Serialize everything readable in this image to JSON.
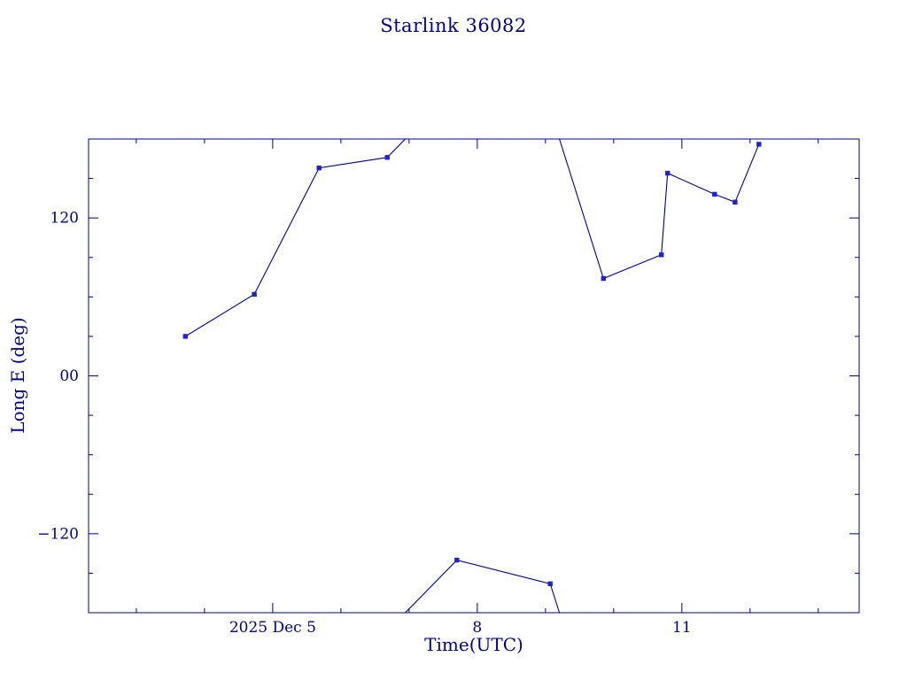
{
  "page": {
    "window_title": "Starlink 36082"
  },
  "chart_data": {
    "type": "line",
    "title": "Starlink 36082",
    "xlabel": "Time(UTC)",
    "ylabel": "Long E (deg)",
    "x_unit": "day of December 2025",
    "xlim": [
      2.3,
      13.6
    ],
    "ylim": [
      -180,
      180
    ],
    "y_wrap": 180,
    "grid": false,
    "legend": false,
    "x_major_ticks": [
      {
        "day": 5,
        "label": "2025 Dec  5"
      },
      {
        "day": 8,
        "label": "8"
      },
      {
        "day": 11,
        "label": "11"
      }
    ],
    "x_minor_ticks": [
      3,
      4,
      6,
      7,
      9,
      10,
      12,
      13
    ],
    "y_major_ticks": [
      {
        "value": 120,
        "label": "120"
      },
      {
        "value": 0,
        "label": "00"
      },
      {
        "value": -120,
        "label": "−120"
      }
    ],
    "y_minor_ticks": [
      -150,
      -90,
      -60,
      -30,
      30,
      60,
      90,
      150
    ],
    "series": [
      {
        "name": "Starlink 36082 longitude east",
        "marker": "square",
        "points": [
          [
            3.72,
            30
          ],
          [
            4.73,
            62
          ],
          [
            5.68,
            158
          ],
          [
            6.68,
            166
          ],
          [
            7.7,
            -140
          ],
          [
            9.07,
            -158
          ],
          [
            9.85,
            74
          ],
          [
            10.7,
            92
          ],
          [
            10.79,
            154
          ],
          [
            11.48,
            138
          ],
          [
            11.78,
            132
          ],
          [
            12.13,
            176
          ]
        ]
      }
    ],
    "colors": {
      "background": "#ffffff",
      "frame": "#00008b",
      "text": "#00008b",
      "line": "#000096",
      "marker": "#2222cc"
    }
  }
}
